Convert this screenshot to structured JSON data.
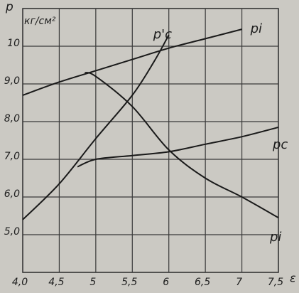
{
  "chart_data": {
    "type": "line",
    "y_label": "p",
    "y_unit": "кг/см²",
    "x_label": "ε",
    "xlim": [
      4.0,
      7.5
    ],
    "ylim": [
      4,
      11
    ],
    "xticks": [
      {
        "value": 4.0,
        "label": "4,0"
      },
      {
        "value": 4.5,
        "label": "4,5"
      },
      5,
      {
        "value": 5.5,
        "label": "5,5"
      },
      6,
      {
        "value": 6.5,
        "label": "6,5"
      },
      7,
      {
        "value": 7.5,
        "label": "7,5"
      }
    ],
    "yticks": [
      {
        "value": 5.0,
        "label": "5,0"
      },
      {
        "value": 6.0,
        "label": "6,0"
      },
      {
        "value": 7.0,
        "label": "7,0"
      },
      {
        "value": 8.0,
        "label": "8,0"
      },
      {
        "value": 9.0,
        "label": "9,0"
      },
      10
    ],
    "grid": true,
    "color": "#1a1a1a",
    "series": [
      {
        "name": "p'c",
        "x": [
          4.0,
          4.5,
          5.0,
          5.5,
          5.8,
          6.0
        ],
        "values": [
          5.4,
          6.35,
          7.55,
          8.7,
          9.6,
          10.3
        ]
      },
      {
        "name": "pi",
        "x": [
          4.0,
          4.5,
          5.0,
          5.5,
          6.0,
          6.5,
          7.0
        ],
        "values": [
          8.7,
          9.05,
          9.35,
          9.65,
          9.95,
          10.2,
          10.45
        ]
      },
      {
        "name": "pc",
        "x": [
          4.75,
          5.0,
          5.5,
          6.0,
          6.5,
          7.0,
          7.5
        ],
        "values": [
          6.8,
          7.0,
          7.1,
          7.2,
          7.4,
          7.6,
          7.85
        ]
      },
      {
        "name": "pi",
        "x": [
          4.85,
          5.0,
          5.5,
          6.0,
          6.5,
          7.0,
          7.5
        ],
        "values": [
          9.3,
          9.2,
          8.4,
          7.25,
          6.5,
          6.0,
          5.45
        ]
      }
    ]
  }
}
